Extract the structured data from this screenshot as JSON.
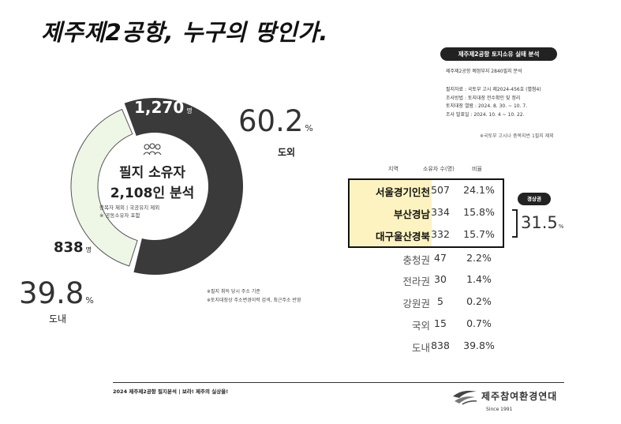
{
  "title": "제주제2공항, 누구의 땅인가.",
  "donut": {
    "outer_value": "1,270",
    "inner_value": "838",
    "unit": "명",
    "center_title": "필지 소유자",
    "center_sub": "2,108인 분석",
    "center_note_1": "중복자 제외 | 국공유지 제외",
    "center_note_2": "※ 공동소유자 포함",
    "outside_pct": "60.2",
    "outside_label": "도외",
    "inside_pct": "39.8",
    "inside_label": "도내",
    "pct_unit": "%",
    "notes": [
      "※필지 취득 당시 주소 기준",
      "※토지대장상 주소변경이력 검색, 최근주소 반영"
    ],
    "colors": {
      "outside": "#3a3a3a",
      "inside": "#eef6e6"
    }
  },
  "panel": {
    "badge": "제주제2공항 토지소유 실태 분석",
    "subtitle": "제주제2공항 예정부지 2840필지 분석",
    "lines": [
      "필지자료 : 국토부 고시 제2024-456호 (별첨4)",
      "조사방법 : 토지대장 전수확인 및 정리",
      "토지대장 열람 : 2024. 8. 30. ~ 10. 7.",
      "조사 발표일 : 2024. 10. 4 ~ 10. 22."
    ],
    "footnote": "※국토부 고시나 중복지번 1필지 제외"
  },
  "table": {
    "headers": [
      "지역",
      "소유자 수(명)",
      "비율"
    ],
    "rows": [
      {
        "region": "서울경기인천",
        "count": "507",
        "pct": "24.1%",
        "highlight": true
      },
      {
        "region": "부산경남",
        "count": "334",
        "pct": "15.8%",
        "highlight": true
      },
      {
        "region": "대구울산경북",
        "count": "332",
        "pct": "15.7%",
        "highlight": true
      },
      {
        "region": "충청권",
        "count": "47",
        "pct": "2.2%",
        "highlight": false
      },
      {
        "region": "전라권",
        "count": "30",
        "pct": "1.4%",
        "highlight": false
      },
      {
        "region": "강원권",
        "count": "5",
        "pct": "0.2%",
        "highlight": false
      },
      {
        "region": "국외",
        "count": "15",
        "pct": "0.7%",
        "highlight": false
      },
      {
        "region": "도내",
        "count": "838",
        "pct": "39.8%",
        "highlight": false
      }
    ],
    "capital_badge": "경상권",
    "capital_pct": "31.5",
    "capital_unit": "%"
  },
  "footer": {
    "text": "2024 제주제2공항 필지분석 |  보라! 제주의 실상을!",
    "org": "제주참여환경연대",
    "since": "Since 1991"
  }
}
